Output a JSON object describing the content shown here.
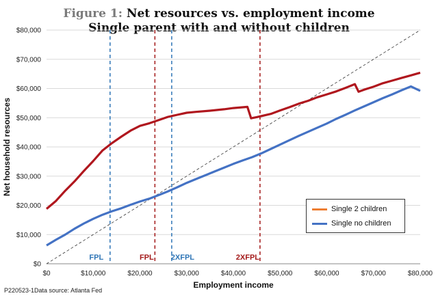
{
  "title": {
    "prefix": "Figure 1:",
    "line1": "Net resources vs. employment  income",
    "line2": "Single parent with and without children"
  },
  "footnote": "P220523-1Data source: Atlanta Fed",
  "colors": {
    "with_children": "#b0171e",
    "no_children": "#4472c4",
    "legend_with_children": "#ed7d31",
    "grid": "#d9d9d9",
    "diagonal": "#333333"
  },
  "chart_data": {
    "type": "line",
    "xlabel": "Employment income",
    "ylabel": "Net household resources",
    "xlim": [
      0,
      80000
    ],
    "ylim": [
      0,
      80000
    ],
    "x_ticks": [
      0,
      10000,
      20000,
      30000,
      40000,
      50000,
      60000,
      70000,
      80000
    ],
    "x_tick_labels": [
      "$0",
      "$10,000",
      "$20,000",
      "$30,000",
      "$40,000",
      "$50,000",
      "$60,000",
      "$70,000",
      "$80,000"
    ],
    "y_ticks": [
      0,
      10000,
      20000,
      30000,
      40000,
      50000,
      60000,
      70000,
      80000
    ],
    "y_tick_labels": [
      "$0",
      "$10,000",
      "$20,000",
      "$30,000",
      "$40,000",
      "$50,000",
      "$60,000",
      "$70,000",
      "$80,000"
    ],
    "grid": "horizontal",
    "legend_position": "lower-right",
    "series": [
      {
        "name": "Single 2 children",
        "points": [
          [
            0,
            18800
          ],
          [
            2000,
            21500
          ],
          [
            4000,
            25000
          ],
          [
            6000,
            28200
          ],
          [
            8000,
            31800
          ],
          [
            10000,
            35200
          ],
          [
            12000,
            38800
          ],
          [
            14000,
            41300
          ],
          [
            16000,
            43500
          ],
          [
            18000,
            45600
          ],
          [
            20000,
            47200
          ],
          [
            22000,
            48100
          ],
          [
            24000,
            49200
          ],
          [
            26000,
            50300
          ],
          [
            28000,
            51000
          ],
          [
            30000,
            51700
          ],
          [
            32000,
            52000
          ],
          [
            35000,
            52400
          ],
          [
            38000,
            52900
          ],
          [
            40000,
            53300
          ],
          [
            43000,
            53700
          ],
          [
            43800,
            49800
          ],
          [
            45000,
            50200
          ],
          [
            48000,
            51300
          ],
          [
            50000,
            52500
          ],
          [
            52000,
            53600
          ],
          [
            54000,
            54800
          ],
          [
            56000,
            55800
          ],
          [
            58000,
            57000
          ],
          [
            60000,
            58000
          ],
          [
            62000,
            59000
          ],
          [
            64000,
            60200
          ],
          [
            66000,
            61500
          ],
          [
            66800,
            58900
          ],
          [
            68000,
            59600
          ],
          [
            70000,
            60600
          ],
          [
            72000,
            61800
          ],
          [
            74000,
            62700
          ],
          [
            76000,
            63600
          ],
          [
            78000,
            64500
          ],
          [
            80000,
            65400
          ]
        ]
      },
      {
        "name": "Single no children",
        "points": [
          [
            0,
            6300
          ],
          [
            2000,
            8200
          ],
          [
            4000,
            10000
          ],
          [
            6000,
            12000
          ],
          [
            8000,
            13800
          ],
          [
            10000,
            15400
          ],
          [
            12000,
            16800
          ],
          [
            14000,
            18000
          ],
          [
            16000,
            19000
          ],
          [
            18000,
            20200
          ],
          [
            20000,
            21300
          ],
          [
            22000,
            22300
          ],
          [
            24000,
            23500
          ],
          [
            26000,
            24800
          ],
          [
            28000,
            26200
          ],
          [
            30000,
            27700
          ],
          [
            32000,
            29000
          ],
          [
            34000,
            30300
          ],
          [
            36000,
            31600
          ],
          [
            38000,
            32900
          ],
          [
            40000,
            34200
          ],
          [
            42000,
            35400
          ],
          [
            44000,
            36500
          ],
          [
            46000,
            37800
          ],
          [
            48000,
            39300
          ],
          [
            50000,
            40800
          ],
          [
            52000,
            42300
          ],
          [
            54000,
            43800
          ],
          [
            56000,
            45200
          ],
          [
            58000,
            46600
          ],
          [
            60000,
            48000
          ],
          [
            62000,
            49600
          ],
          [
            64000,
            51000
          ],
          [
            66000,
            52500
          ],
          [
            68000,
            53900
          ],
          [
            70000,
            55300
          ],
          [
            72000,
            56700
          ],
          [
            74000,
            58000
          ],
          [
            76000,
            59400
          ],
          [
            78000,
            60700
          ],
          [
            80000,
            59200
          ]
        ]
      }
    ],
    "reference_line": [
      [
        0,
        0
      ],
      [
        80000,
        80000
      ]
    ],
    "markers": [
      {
        "label": "FPL",
        "x": 13600,
        "color": "#2e75b6"
      },
      {
        "label": "FPL",
        "x": 23200,
        "color": "#a31818"
      },
      {
        "label": "2XFPL",
        "x": 26800,
        "color": "#2e75b6"
      },
      {
        "label": "2XFPL",
        "x": 45700,
        "color": "#a31818"
      }
    ]
  }
}
